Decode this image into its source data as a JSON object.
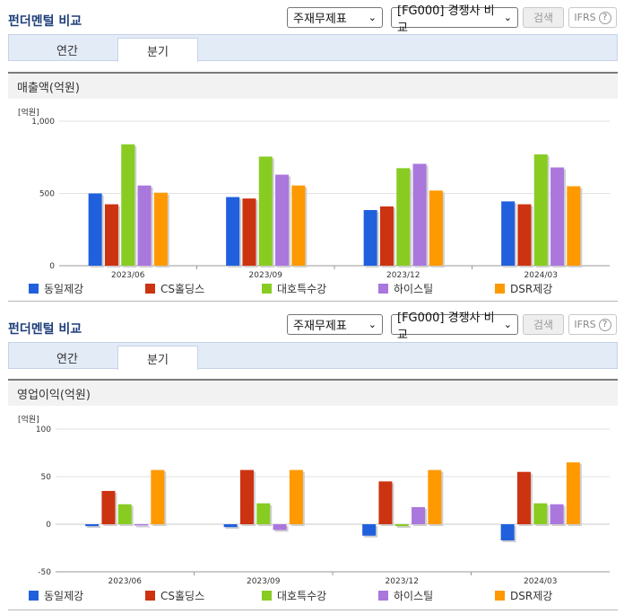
{
  "panels": [
    {
      "title": "펀더멘털 비교",
      "select_type": "주재무제표",
      "select_group": "[FG000] 경쟁사 비교",
      "search_label": "검색",
      "ifrs_label": "IFRS",
      "help_label": "?",
      "tabs": [
        {
          "label": "연간"
        },
        {
          "label": "분기"
        }
      ],
      "active_tab": "분기",
      "metric_label": "매출액(억원)",
      "unit_label": "[억원]"
    },
    {
      "title": "펀더멘털 비교",
      "select_type": "주재무제표",
      "select_group": "[FG000] 경쟁사 비교",
      "search_label": "검색",
      "ifrs_label": "IFRS",
      "help_label": "?",
      "tabs": [
        {
          "label": "연간"
        },
        {
          "label": "분기"
        }
      ],
      "active_tab": "분기",
      "metric_label": "영업이익(억원)",
      "unit_label": "[억원]"
    }
  ],
  "chart_data": [
    {
      "type": "bar",
      "title": "매출액(억원)",
      "ylabel": "[억원]",
      "categories": [
        "2023/06",
        "2023/09",
        "2023/12",
        "2024/03"
      ],
      "yticks": [
        "1,000",
        "500",
        "0"
      ],
      "ylim": [
        0,
        1000
      ],
      "grid": true,
      "legend_position": "bottom",
      "series": [
        {
          "name": "동일제강",
          "color": "#2060dd",
          "values": [
            500,
            475,
            385,
            445
          ]
        },
        {
          "name": "CS홀딩스",
          "color": "#cc3311",
          "values": [
            425,
            465,
            410,
            425
          ]
        },
        {
          "name": "대호특수강",
          "color": "#88cc22",
          "values": [
            840,
            755,
            675,
            770
          ]
        },
        {
          "name": "하이스틸",
          "color": "#aa77dd",
          "values": [
            555,
            630,
            705,
            680
          ]
        },
        {
          "name": "DSR제강",
          "color": "#ff9900",
          "values": [
            505,
            555,
            520,
            550
          ]
        }
      ]
    },
    {
      "type": "bar",
      "title": "영업이익(억원)",
      "ylabel": "[억원]",
      "categories": [
        "2023/06",
        "2023/09",
        "2023/12",
        "2024/03"
      ],
      "yticks": [
        "100",
        "50",
        "0",
        "-50"
      ],
      "ylim": [
        -50,
        100
      ],
      "grid": true,
      "legend_position": "bottom",
      "series": [
        {
          "name": "동일제강",
          "color": "#2060dd",
          "values": [
            -2,
            -3,
            -12,
            -17
          ]
        },
        {
          "name": "CS홀딩스",
          "color": "#cc3311",
          "values": [
            35,
            57,
            45,
            55
          ]
        },
        {
          "name": "대호특수강",
          "color": "#88cc22",
          "values": [
            21,
            22,
            -2,
            22
          ]
        },
        {
          "name": "하이스틸",
          "color": "#aa77dd",
          "values": [
            0,
            -6,
            18,
            21
          ]
        },
        {
          "name": "DSR제강",
          "color": "#ff9900",
          "values": [
            57,
            57,
            57,
            65
          ]
        }
      ]
    }
  ]
}
